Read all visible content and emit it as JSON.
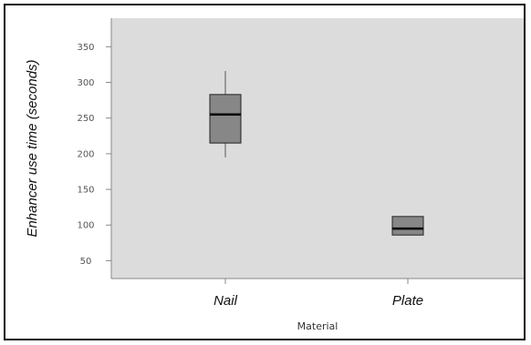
{
  "chart_data": {
    "type": "boxplot",
    "title": "",
    "xlabel": "Material",
    "ylabel": "Enhancer use time (seconds)",
    "ylim": [
      25,
      390
    ],
    "yticks": [
      {
        "value": 50,
        "label": "50"
      },
      {
        "value": 100,
        "label": "100"
      },
      {
        "value": 150,
        "label": "150"
      },
      {
        "value": 200,
        "label": "200"
      },
      {
        "value": 250,
        "label": "250"
      },
      {
        "value": 300,
        "label": "300"
      },
      {
        "value": 350,
        "label": "350"
      }
    ],
    "categories": [
      "Nail",
      "Plate"
    ],
    "boxes": [
      {
        "category": "Nail",
        "min": 195,
        "q1": 215,
        "median": 255,
        "q3": 283,
        "max": 316
      },
      {
        "category": "Plate",
        "min": 86,
        "q1": 86,
        "median": 95,
        "q3": 112,
        "max": 112
      }
    ],
    "grid": false,
    "colors": {
      "plot_background": "#dcdcdc",
      "box_fill": "#878787",
      "box_outline": "#222222",
      "whisker": "#9a9a9a",
      "median": "#000000"
    }
  }
}
